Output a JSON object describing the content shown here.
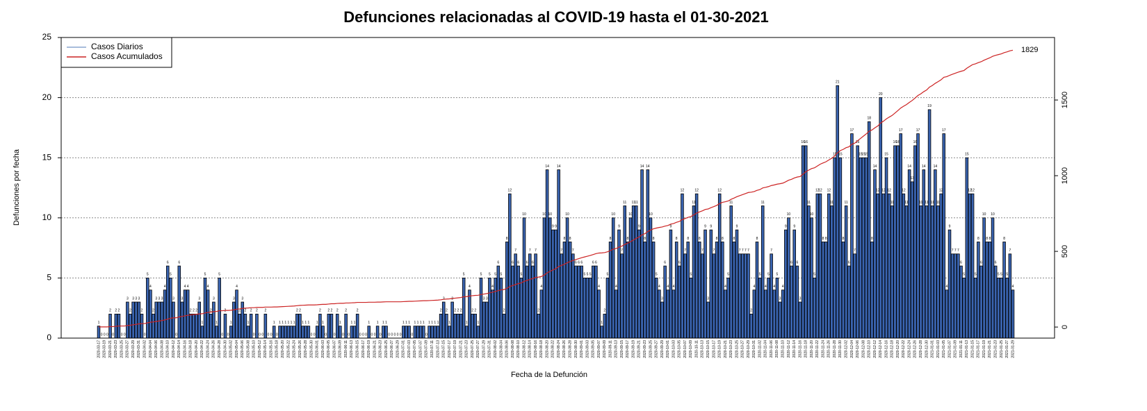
{
  "chart_data": {
    "type": "bar",
    "title": "Defunciones relacionadas al COVID-19 hasta el 01-30-2021",
    "x_label": "Fecha de la Defunción",
    "y_label": "Defunciones por fecha",
    "ylim": [
      0,
      25
    ],
    "yticks": [
      0,
      5,
      10,
      15,
      20,
      25
    ],
    "y2lim": [
      -73,
      1913
    ],
    "y2ticks": [
      0,
      500,
      1000,
      1500
    ],
    "grid": true,
    "legend": "top-left",
    "end_label": 1829,
    "categories": [
      "2020-03-17",
      null,
      "2020-03-19",
      null,
      "2020-03-21",
      null,
      "2020-03-23",
      null,
      "2020-03-25",
      null,
      "2020-03-27",
      null,
      "2020-03-29",
      null,
      "2020-03-31",
      null,
      "2020-04-02",
      null,
      "2020-04-04",
      null,
      "2020-04-06",
      null,
      "2020-04-08",
      null,
      "2020-04-10",
      null,
      "2020-04-12",
      null,
      "2020-04-14",
      null,
      "2020-04-16",
      null,
      "2020-04-18",
      null,
      "2020-04-20",
      null,
      "2020-04-22",
      null,
      "2020-04-24",
      null,
      "2020-04-26",
      null,
      "2020-04-28",
      null,
      "2020-04-30",
      null,
      "2020-05-02",
      null,
      "2020-05-04",
      null,
      "2020-05-06",
      null,
      "2020-05-08",
      null,
      "2020-05-10",
      null,
      "2020-05-12",
      null,
      "2020-05-14",
      null,
      "2020-05-16",
      null,
      "2020-05-18",
      null,
      "2020-05-20",
      null,
      "2020-05-22",
      null,
      "2020-05-24",
      null,
      "2020-05-26",
      null,
      "2020-05-28",
      null,
      "2020-05-30",
      null,
      "2020-06-01",
      null,
      "2020-06-03",
      null,
      "2020-06-05",
      null,
      "2020-06-07",
      null,
      "2020-06-09",
      null,
      "2020-06-11",
      null,
      "2020-06-13",
      null,
      "2020-06-15",
      null,
      "2020-06-17",
      null,
      "2020-06-19",
      null,
      "2020-06-21",
      null,
      "2020-06-23",
      null,
      "2020-06-25",
      null,
      "2020-06-27",
      null,
      "2020-06-29",
      null,
      "2020-07-01",
      null,
      "2020-07-03",
      null,
      "2020-07-05",
      null,
      "2020-07-07",
      null,
      "2020-07-09",
      null,
      "2020-07-11",
      null,
      "2020-07-13",
      null,
      "2020-07-15",
      null,
      "2020-07-17",
      null,
      "2020-07-19",
      null,
      "2020-07-21",
      null,
      "2020-07-23",
      null,
      "2020-07-25",
      null,
      "2020-07-27",
      null,
      "2020-07-29",
      null,
      "2020-07-31",
      null,
      "2020-08-02",
      null,
      "2020-08-04",
      null,
      "2020-08-06",
      null,
      "2020-08-08",
      null,
      "2020-08-10",
      null,
      "2020-08-12",
      null,
      "2020-08-14",
      null,
      "2020-08-16",
      null,
      "2020-08-18",
      null,
      "2020-08-20",
      null,
      "2020-08-22",
      null,
      "2020-08-24",
      null,
      "2020-08-26",
      null,
      "2020-08-28",
      null,
      "2020-08-30",
      null,
      "2020-09-01",
      null,
      "2020-09-03",
      null,
      "2020-09-05",
      null,
      "2020-09-07",
      null,
      "2020-09-09",
      null,
      "2020-09-11",
      null,
      "2020-09-13",
      null,
      "2020-09-15",
      null,
      "2020-09-17",
      null,
      "2020-09-19",
      null,
      "2020-09-21",
      null,
      "2020-09-23",
      null,
      "2020-09-25",
      null,
      "2020-09-27",
      null,
      "2020-09-29",
      null,
      "2020-10-01",
      null,
      "2020-10-03",
      null,
      "2020-10-05",
      null,
      "2020-10-07",
      null,
      "2020-10-09",
      null,
      "2020-10-11",
      null,
      "2020-10-13",
      null,
      "2020-10-15",
      null,
      "2020-10-17",
      null,
      "2020-10-19",
      null,
      "2020-10-21",
      null,
      "2020-10-23",
      null,
      "2020-10-25",
      null,
      "2020-10-27",
      null,
      "2020-10-29",
      null,
      "2020-10-31",
      null,
      "2020-11-02",
      null,
      "2020-11-04",
      null,
      "2020-11-06",
      null,
      "2020-11-08",
      null,
      "2020-11-10",
      null,
      "2020-11-12",
      null,
      "2020-11-14",
      null,
      "2020-11-16",
      null,
      "2020-11-18",
      null,
      "2020-11-20",
      null,
      "2020-11-22",
      null,
      "2020-11-24",
      null,
      "2020-11-26",
      null,
      "2020-11-28",
      null,
      "2020-11-30",
      null,
      "2020-12-02",
      null,
      "2020-12-04",
      null,
      "2020-12-06",
      null,
      "2020-12-08",
      null,
      "2020-12-10",
      null,
      "2020-12-12",
      null,
      "2020-12-14",
      null,
      "2020-12-16",
      null,
      "2020-12-18",
      null,
      "2020-12-20",
      null,
      "2020-12-22",
      null,
      "2020-12-24",
      null,
      "2020-12-26",
      null,
      "2020-12-28",
      null,
      "2020-12-30",
      null,
      "2021-01-01",
      null,
      "2021-01-03",
      null,
      "2021-01-05",
      null,
      "2021-01-07",
      null,
      "2021-01-09",
      null,
      "2021-01-11",
      null,
      "2021-01-13",
      null,
      "2021-01-15",
      null,
      "2021-01-17",
      null,
      "2021-01-19",
      null,
      "2021-01-21",
      null,
      "2021-01-23",
      null,
      "2021-01-25",
      null,
      "2021-01-27",
      null,
      "2021-01-29"
    ],
    "series": [
      {
        "name": "Casos Diarios",
        "color": "#3a64b0",
        "values": [
          1,
          0,
          0,
          0,
          2,
          0,
          2,
          2,
          0,
          0,
          3,
          2,
          3,
          3,
          3,
          2,
          0,
          5,
          4,
          2,
          3,
          3,
          3,
          4,
          6,
          5,
          3,
          0,
          6,
          3,
          4,
          4,
          2,
          2,
          2,
          3,
          1,
          5,
          4,
          2,
          3,
          1,
          5,
          0,
          2,
          0,
          1,
          3,
          4,
          2,
          3,
          2,
          1,
          2,
          0,
          2,
          0,
          0,
          2,
          0,
          0,
          1,
          0,
          1,
          1,
          1,
          1,
          1,
          1,
          2,
          2,
          1,
          1,
          1,
          0,
          0,
          1,
          2,
          1,
          0,
          2,
          2,
          0,
          2,
          1,
          0,
          2,
          0,
          1,
          1,
          2,
          0,
          0,
          0,
          1,
          0,
          0,
          1,
          0,
          1,
          1,
          0,
          0,
          0,
          0,
          0,
          1,
          1,
          1,
          0,
          1,
          1,
          1,
          1,
          0,
          1,
          1,
          1,
          1,
          2,
          3,
          2,
          1,
          3,
          2,
          2,
          2,
          5,
          1,
          4,
          2,
          2,
          1,
          5,
          3,
          3,
          5,
          4,
          5,
          6,
          5,
          2,
          8,
          12,
          6,
          7,
          6,
          5,
          10,
          6,
          7,
          6,
          7,
          2,
          4,
          10,
          14,
          10,
          9,
          9,
          14,
          7,
          8,
          10,
          8,
          7,
          6,
          6,
          6,
          5,
          5,
          5,
          6,
          6,
          4,
          1,
          2,
          5,
          8,
          10,
          4,
          9,
          7,
          11,
          8,
          10,
          11,
          11,
          9,
          14,
          8,
          14,
          10,
          8,
          5,
          4,
          3,
          6,
          4,
          9,
          4,
          8,
          6,
          12,
          7,
          8,
          5,
          11,
          12,
          8,
          7,
          9,
          3,
          9,
          7,
          8,
          12,
          8,
          4,
          5,
          11,
          8,
          9,
          7,
          7,
          7,
          7,
          2,
          4,
          8,
          5,
          11,
          4,
          5,
          7,
          4,
          5,
          3,
          4,
          9,
          10,
          6,
          9,
          6,
          3,
          16,
          16,
          11,
          10,
          5,
          12,
          12,
          8,
          8,
          12,
          11,
          15,
          21,
          15,
          8,
          11,
          6,
          17,
          7,
          16,
          15,
          15,
          15,
          18,
          8,
          14,
          12,
          20,
          12,
          15,
          12,
          11,
          16,
          16,
          17,
          12,
          11,
          14,
          13,
          16,
          17,
          11,
          14,
          11,
          19,
          11,
          14,
          11,
          12,
          17,
          4,
          9,
          7,
          7,
          7,
          6,
          5,
          15,
          12,
          12,
          5,
          8,
          6,
          10,
          8,
          8,
          10,
          6,
          5,
          5,
          8,
          5,
          7,
          4
        ]
      },
      {
        "name": "Casos Acumulados",
        "color": "#cc2222",
        "axis": "y2",
        "values": [
          1,
          1,
          1,
          1,
          3,
          3,
          5,
          7,
          7,
          7,
          10,
          12,
          15,
          18,
          21,
          23,
          23,
          28,
          32,
          34,
          37,
          40,
          43,
          47,
          53,
          58,
          61,
          61,
          67,
          70,
          74,
          78,
          80,
          82,
          84,
          87,
          88,
          93,
          97,
          99,
          102,
          103,
          108,
          108,
          110,
          110,
          111,
          114,
          118,
          120,
          123,
          125,
          126,
          128,
          128,
          130,
          130,
          130,
          132,
          132,
          132,
          133,
          133,
          134,
          135,
          136,
          137,
          138,
          139,
          141,
          143,
          144,
          145,
          146,
          146,
          146,
          147,
          149,
          150,
          150,
          152,
          154,
          154,
          156,
          157,
          157,
          159,
          159,
          160,
          161,
          163,
          163,
          163,
          163,
          164,
          164,
          164,
          165,
          165,
          166,
          167,
          167,
          167,
          167,
          167,
          167,
          168,
          169,
          170,
          170,
          171,
          172,
          173,
          174,
          174,
          175,
          176,
          177,
          178,
          180,
          183,
          185,
          186,
          189,
          191,
          193,
          195,
          200,
          201,
          205,
          207,
          209,
          210,
          215,
          218,
          221,
          226,
          230,
          235,
          241,
          246,
          248,
          256,
          268,
          274,
          281,
          287,
          292,
          302,
          308,
          315,
          321,
          328,
          330,
          334,
          344,
          358,
          368,
          377,
          386,
          400,
          407,
          415,
          425,
          433,
          440,
          446,
          452,
          458,
          463,
          468,
          473,
          479,
          485,
          489,
          490,
          492,
          497,
          505,
          515,
          519,
          528,
          535,
          546,
          554,
          564,
          575,
          586,
          595,
          609,
          617,
          631,
          641,
          649,
          654,
          658,
          661,
          667,
          671,
          680,
          684,
          692,
          698,
          710,
          717,
          725,
          730,
          741,
          753,
          761,
          768,
          777,
          780,
          789,
          796,
          804,
          816,
          824,
          828,
          833,
          844,
          852,
          861,
          868,
          875,
          882,
          889,
          891,
          895,
          903,
          908,
          919,
          923,
          928,
          935,
          939,
          944,
          947,
          951,
          960,
          970,
          976,
          985,
          991,
          994,
          1010,
          1026,
          1037,
          1047,
          1052,
          1064,
          1076,
          1084,
          1092,
          1104,
          1115,
          1130,
          1151,
          1166,
          1174,
          1185,
          1191,
          1208,
          1215,
          1231,
          1246,
          1261,
          1276,
          1294,
          1302,
          1316,
          1328,
          1348,
          1360,
          1375,
          1387,
          1398,
          1414,
          1430,
          1447,
          1459,
          1470,
          1484,
          1497,
          1513,
          1530,
          1541,
          1555,
          1566,
          1585,
          1596,
          1610,
          1621,
          1633,
          1650,
          1654,
          1663,
          1670,
          1677,
          1684,
          1690,
          1695,
          1710,
          1722,
          1734,
          1739,
          1747,
          1753,
          1763,
          1771,
          1779,
          1789,
          1795,
          1800,
          1805,
          1813,
          1818,
          1825,
          1829
        ]
      }
    ]
  }
}
